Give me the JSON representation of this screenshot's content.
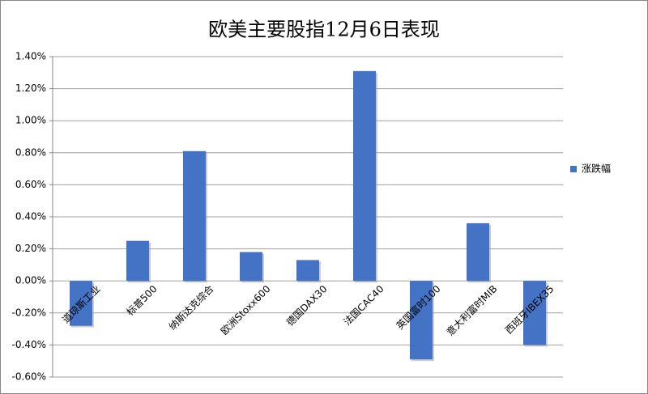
{
  "chart_data": {
    "type": "bar",
    "title": "欧美主要股指12月6日表现",
    "categories": [
      "道琼斯工业",
      "标普500",
      "纳斯达克综合",
      "欧洲Stoxx600",
      "德国DAX30",
      "法国CAC40",
      "英国富时100",
      "意大利富时MIB",
      "西班牙IBEX35"
    ],
    "series": [
      {
        "name": "涨跌幅",
        "color": "#4472c4",
        "values": [
          -0.28,
          0.25,
          0.81,
          0.18,
          0.13,
          1.31,
          -0.49,
          0.36,
          -0.4
        ]
      }
    ],
    "ylim": [
      -0.6,
      1.4
    ],
    "yticks": [
      {
        "value": -0.6,
        "label": "-0.60%"
      },
      {
        "value": -0.4,
        "label": "-0.40%"
      },
      {
        "value": -0.2,
        "label": "-0.20%"
      },
      {
        "value": 0,
        "label": "0.00%"
      },
      {
        "value": 0.2,
        "label": "0.20%"
      },
      {
        "value": 0.4,
        "label": "0.40%"
      },
      {
        "value": 0.6,
        "label": "0.60%"
      },
      {
        "value": 0.8,
        "label": "0.80%"
      },
      {
        "value": 1.0,
        "label": "1.00%"
      },
      {
        "value": 1.2,
        "label": "1.20%"
      },
      {
        "value": 1.4,
        "label": "1.40%"
      }
    ],
    "grid": true,
    "legend": "right"
  }
}
